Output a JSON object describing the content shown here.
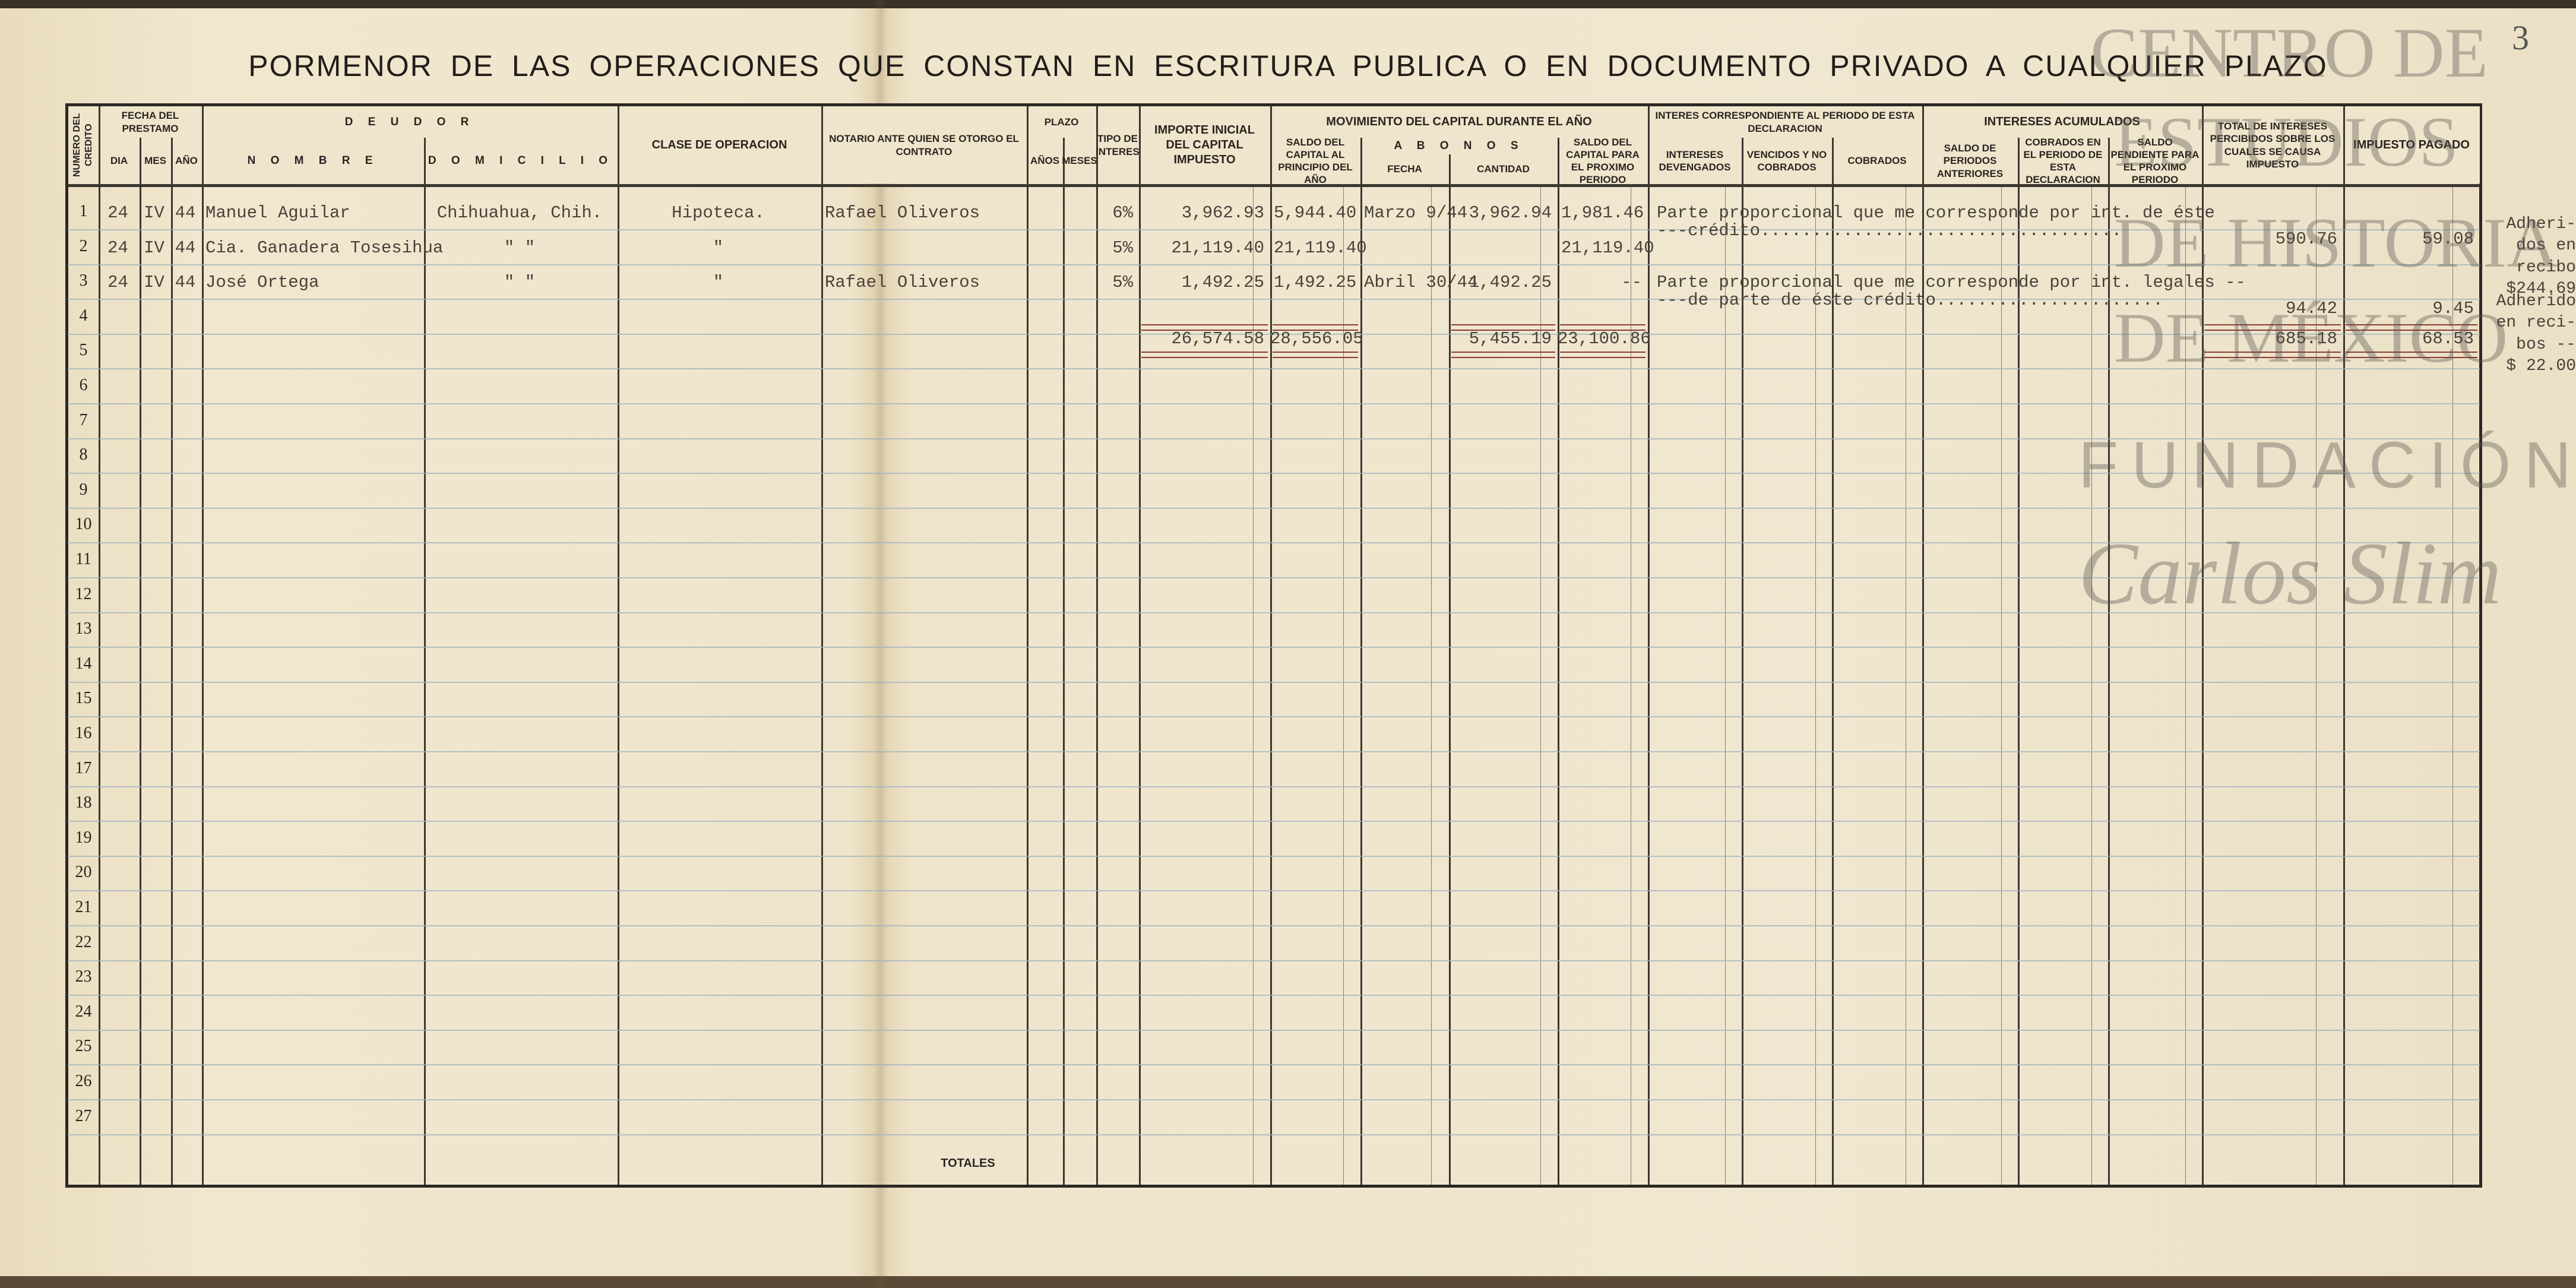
{
  "page_number": "3",
  "title": "PORMENOR DE LAS OPERACIONES QUE CONSTAN EN ESCRITURA PUBLICA O EN DOCUMENTO PRIVADO A CUALQUIER PLAZO",
  "headers": {
    "numero": "NUMERO DEL CREDITO",
    "fecha_prestamo": "FECHA DEL PRESTAMO",
    "dia": "DIA",
    "mes": "MES",
    "ano": "AÑO",
    "deudor": "D E U D O R",
    "nombre": "N O M B R E",
    "domicilio": "D O M I C I L I O",
    "clase": "CLASE DE OPERACION",
    "notario": "NOTARIO ANTE QUIEN SE OTORGO EL CONTRATO",
    "plazo": "PLAZO",
    "anos": "AÑOS",
    "meses": "MESES",
    "tipo": "TIPO DE INTERES",
    "importe": "IMPORTE INICIAL DEL CAPITAL IMPUESTO",
    "movimiento": "MOVIMIENTO DEL CAPITAL DURANTE EL AÑO",
    "saldo_principio": "SALDO DEL CAPITAL AL PRINCIPIO DEL AÑO",
    "abonos": "A B O N O S",
    "fecha": "FECHA",
    "cantidad": "CANTIDAD",
    "saldo_proximo": "SALDO DEL CAPITAL PARA EL PROXIMO PERIODO",
    "interes_periodo": "INTERES CORRESPONDIENTE AL PERIODO DE ESTA DECLARACION",
    "devengados": "INTERESES DEVENGADOS",
    "vencidos": "VENCIDOS Y NO COBRADOS",
    "cobrados": "COBRADOS",
    "acumulados": "INTERESES ACUMULADOS",
    "saldo_anteriores": "SALDO DE PERIODOS ANTERIORES",
    "cobrados_periodo": "COBRADOS EN EL PERIODO DE ESTA DECLARACION",
    "saldo_pendiente": "SALDO PENDIENTE PARA EL PROXIMO PERIODO",
    "total_intereses": "TOTAL DE INTERESES PERCIBIDOS SOBRE LOS CUALES SE CAUSA IMPUESTO",
    "impuesto": "IMPUESTO PAGADO"
  },
  "row_numbers": [
    "1",
    "2",
    "3",
    "4",
    "5",
    "6",
    "7",
    "8",
    "9",
    "10",
    "11",
    "12",
    "13",
    "14",
    "15",
    "16",
    "17",
    "18",
    "19",
    "20",
    "21",
    "22",
    "23",
    "24",
    "25",
    "26",
    "27"
  ],
  "totales_label": "TOTALES",
  "entries": [
    {
      "row": 1,
      "dia": "24",
      "mes": "IV",
      "ano": "44",
      "nombre": "Manuel Aguilar",
      "domicilio": "Chihuahua, Chih.",
      "clase": "Hipoteca.",
      "notario": "Rafael Oliveros",
      "tipo": "6%",
      "importe": "3,962.93",
      "saldo_principio": "5,944.40",
      "fecha": "Marzo 9/44",
      "cantidad": "3,962.94",
      "saldo_proximo": "1,981.46",
      "interes_texto": "Parte proporcional que me corresponde por int. de éste",
      "interes_texto_2": "---crédito...................................",
      "total_intereses": "590.76",
      "impuesto": "59.08"
    },
    {
      "row": 2,
      "dia": "24",
      "mes": "IV",
      "ano": "44",
      "nombre": "Cia. Ganadera Tosesihua",
      "domicilio": "\"     \"",
      "clase": "\"",
      "notario": "",
      "tipo": "5%",
      "importe": "21,119.40",
      "saldo_principio": "21,119.40",
      "saldo_proximo": "21,119.40"
    },
    {
      "row": 3,
      "dia": "24",
      "mes": "IV",
      "ano": "44",
      "nombre": "José Ortega",
      "domicilio": "\"     \"",
      "clase": "\"",
      "notario": "Rafael Oliveros",
      "tipo": "5%",
      "importe": "1,492.25",
      "saldo_principio": "1,492.25",
      "fecha": "Abril 30/44",
      "cantidad": "1,492.25",
      "saldo_proximo": "--",
      "interes_texto": "Parte proporcional que me corresponde por int. legales --",
      "interes_texto_2": "---de parte de éste crédito......................",
      "total_intereses": "94.42",
      "impuesto": "9.45"
    }
  ],
  "totals": {
    "importe": "26,574.58",
    "saldo_principio": "28,556.05",
    "cantidad": "5,455.19",
    "saldo_proximo": "23,100.86",
    "total_intereses": "685.18",
    "impuesto": "68.53"
  },
  "margin_notes": [
    "Adheri-\ndos en\nrecibo\n$244.69",
    "Adherido\nen reci-\nbos --\n$ 22.00"
  ],
  "watermark": {
    "line1": "CENTRO DE",
    "line2": "ESTUDIOS",
    "line3": "DE HISTORIA",
    "line4": "DE MÉXICO",
    "line5": "FUNDACIÓN",
    "signature": "Carlos Slim"
  }
}
